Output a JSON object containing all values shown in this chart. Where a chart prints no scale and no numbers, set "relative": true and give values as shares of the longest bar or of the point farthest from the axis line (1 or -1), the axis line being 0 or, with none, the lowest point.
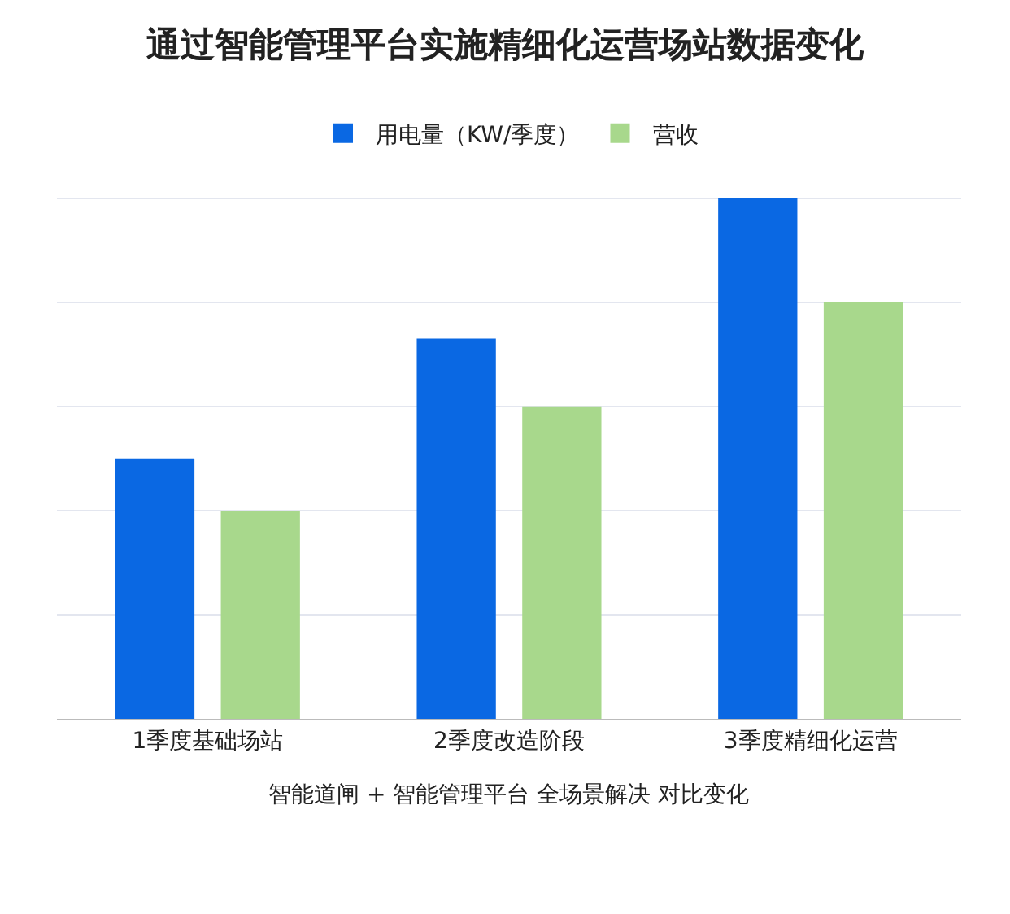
{
  "chart_data": {
    "type": "bar",
    "title": "通过智能管理平台实施精细化运营场站数据变化",
    "categories": [
      "1季度基础场站",
      "2季度改造阶段",
      "3季度精细化运营"
    ],
    "series": [
      {
        "name": "用电量（KW/季度）",
        "color": "#0a68e3",
        "values": [
          0.5,
          0.73,
          1
        ]
      },
      {
        "name": "营收",
        "color": "#a8d88c",
        "values": [
          0.4,
          0.6,
          0.8
        ]
      }
    ],
    "relative": true,
    "grid": "y",
    "legend": "top",
    "annotations": [
      "智能道闸 + 智能管理平台 全场景解决 对比变化"
    ]
  }
}
